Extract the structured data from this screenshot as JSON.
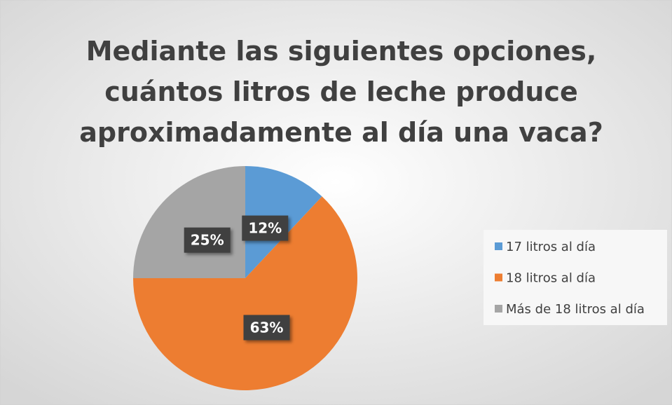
{
  "chart_data": {
    "type": "pie",
    "title": [
      "Mediante las siguientes opciones,",
      "cuántos litros de leche produce",
      "aproximadamente al día una vaca?"
    ],
    "categories": [
      "17 litros al día",
      "18 litros al día",
      "Más de 18 litros al día"
    ],
    "values": [
      12,
      63,
      25
    ],
    "value_labels": [
      "12%",
      "63%",
      "25%"
    ],
    "colors": [
      "#5b9bd5",
      "#ed7d31",
      "#a5a5a5"
    ],
    "legend": "right"
  }
}
